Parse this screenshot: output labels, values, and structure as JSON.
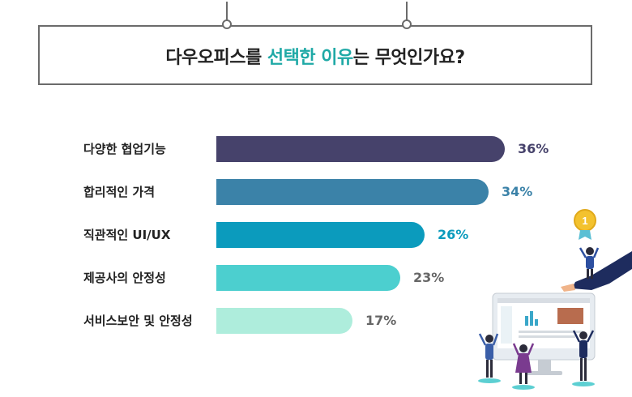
{
  "header": {
    "title_part1": "다우오피스를 ",
    "title_highlight": "선택한 이유",
    "title_part2": "는 무엇인가요?"
  },
  "chart_data": {
    "type": "bar",
    "orientation": "horizontal",
    "categories": [
      "다양한 협업기능",
      "합리적인 가격",
      "직관적인 UI/UX",
      "제공사의 안정성",
      "서비스보안 및 안정성"
    ],
    "values": [
      36,
      34,
      26,
      23,
      17
    ],
    "value_labels": [
      "36%",
      "34%",
      "26%",
      "23%",
      "17%"
    ],
    "bar_colors": [
      "#46426b",
      "#3b82a8",
      "#0b9bbd",
      "#4ccfcf",
      "#aeeddc"
    ],
    "label_colors": [
      "#46426b",
      "#3b82a8",
      "#0b9bbd",
      "#666666",
      "#666666"
    ],
    "xlim": [
      0,
      36
    ],
    "grid": false
  },
  "illustration": {
    "medal_text": "1"
  }
}
